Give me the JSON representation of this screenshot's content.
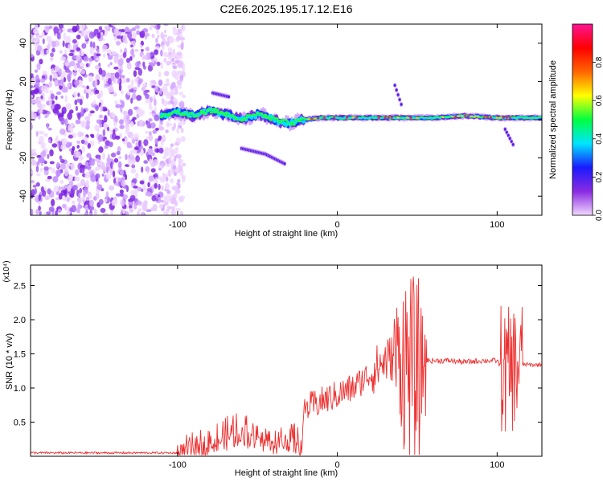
{
  "figure": {
    "title": "C2E6.2025.195.17.12.E16"
  },
  "chart_data": [
    {
      "type": "heatmap",
      "xlabel": "Height of straight line (km)",
      "ylabel": "Frequency (Hz)",
      "xlim": [
        -192,
        128
      ],
      "ylim": [
        -50,
        50
      ],
      "xticks": [
        -100,
        0,
        100
      ],
      "yticks": [
        -40,
        -20,
        0,
        20,
        40
      ],
      "colorbar": {
        "label": "Normalized spectral amplitude",
        "range": [
          0,
          1
        ],
        "ticks": [
          "0.0",
          "0.2",
          "0.4",
          "0.6",
          "0.8"
        ],
        "colors": [
          "#f2d8ff",
          "#8a2be2",
          "#1a1aff",
          "#00e5ff",
          "#00ff40",
          "#ffff00",
          "#ff6600",
          "#ff0000",
          "#ff1493"
        ]
      },
      "ridge": {
        "x": [
          -110,
          -100,
          -90,
          -80,
          -70,
          -60,
          -50,
          -40,
          -30,
          -20,
          -10,
          0,
          20,
          40,
          60,
          80,
          100,
          128
        ],
        "freq_hz": [
          2,
          4,
          2,
          5,
          3,
          0,
          3,
          0,
          -2,
          0,
          1,
          1,
          1,
          1,
          1,
          2,
          1,
          1
        ]
      },
      "branches": [
        {
          "x": [
            -60,
            -45,
            -33
          ],
          "freq_hz": [
            -15,
            -18,
            -23
          ]
        },
        {
          "x": [
            -78,
            -68
          ],
          "freq_hz": [
            14,
            12
          ]
        },
        {
          "x": [
            36,
            40
          ],
          "freq_hz": [
            18,
            8
          ]
        },
        {
          "x": [
            105,
            110
          ],
          "freq_hz": [
            -5,
            -13
          ]
        }
      ]
    },
    {
      "type": "line",
      "xlabel": "Height of straight line (km)",
      "ylabel": "SNR (10 * v/v)",
      "scale_note": "(x10⁴)",
      "color": "#ee3030",
      "xlim": [
        -192,
        128
      ],
      "ylim": [
        0,
        2.8
      ],
      "xticks": [
        -100,
        0,
        100
      ],
      "yticks": [
        0.5,
        1.0,
        1.5,
        2.0,
        2.5
      ],
      "series": [
        {
          "x": [
            -192,
            -100,
            -90,
            -80,
            -70,
            -60,
            -50,
            -40,
            -30,
            -23,
            -20,
            -10,
            0,
            10,
            20,
            25,
            30,
            40,
            45,
            50,
            55,
            60,
            70,
            80,
            90,
            100,
            105,
            110,
            115,
            120,
            128
          ],
          "y": [
            0.05,
            0.05,
            0.1,
            0.2,
            0.28,
            0.35,
            0.3,
            0.2,
            0.25,
            0.15,
            0.7,
            0.8,
            0.9,
            1.0,
            1.2,
            1.3,
            1.4,
            1.5,
            1.3,
            1.2,
            1.4,
            1.4,
            1.4,
            1.38,
            1.4,
            1.4,
            1.2,
            1.3,
            1.35,
            1.34,
            1.34
          ]
        }
      ]
    }
  ]
}
